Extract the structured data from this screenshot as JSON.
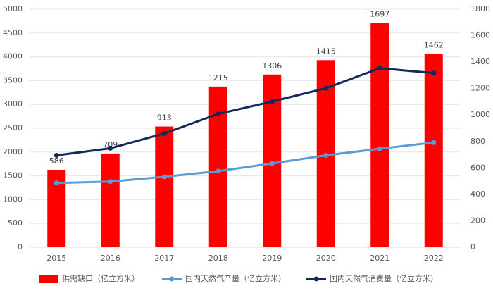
{
  "chart_data": {
    "type": "combo",
    "categories": [
      "2015",
      "2016",
      "2017",
      "2018",
      "2019",
      "2020",
      "2021",
      "2022"
    ],
    "series": [
      {
        "name": "供需缺口（亿立方米）",
        "type": "bar",
        "axis": "y2",
        "color": "#ff0000",
        "values": [
          586,
          709,
          913,
          1215,
          1306,
          1415,
          1697,
          1462
        ]
      },
      {
        "name": "国内天然气产量（亿立方米）",
        "type": "line",
        "color": "#5b9bd5",
        "values": [
          1350,
          1380,
          1480,
          1600,
          1760,
          1930,
          2070,
          2200
        ]
      },
      {
        "name": "国内天然气消费量（亿立方米）",
        "type": "line",
        "color": "#14285a",
        "values": [
          1930,
          2080,
          2390,
          2800,
          3060,
          3340,
          3760,
          3660
        ]
      }
    ],
    "ylim": [
      0,
      5000
    ],
    "yticks": [
      0,
      500,
      1000,
      1500,
      2000,
      2500,
      3000,
      3500,
      4000,
      4500,
      5000
    ],
    "y2lim": [
      0,
      1800
    ],
    "y2ticks": [
      0,
      200,
      400,
      600,
      800,
      1000,
      1200,
      1400,
      1600,
      1800
    ],
    "grid": true,
    "legend": "bottom"
  }
}
